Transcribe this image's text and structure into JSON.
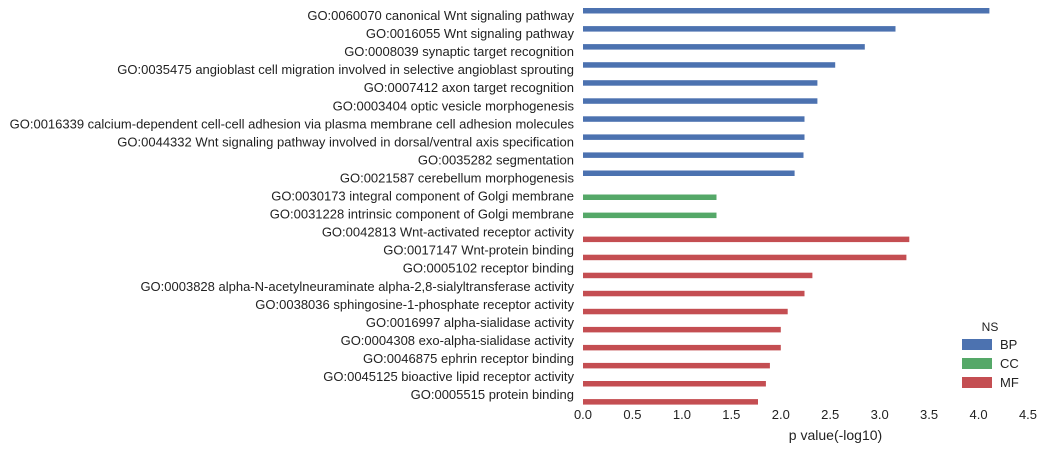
{
  "chart_data": {
    "type": "bar",
    "orientation": "horizontal",
    "xlabel": "p value(-log10)",
    "ylabel": "",
    "xlim": [
      0,
      4.5
    ],
    "xticks": [
      "0.0",
      "0.5",
      "1.0",
      "1.5",
      "2.0",
      "2.5",
      "3.0",
      "3.5",
      "4.0",
      "4.5"
    ],
    "grid": false,
    "legend": {
      "title": "NS",
      "placement": "bottom-right",
      "entries": [
        {
          "name": "BP",
          "color": "#4c72b0"
        },
        {
          "name": "CC",
          "color": "#55a868"
        },
        {
          "name": "MF",
          "color": "#c44e52"
        }
      ]
    },
    "categories": [
      "GO:0060070 canonical Wnt signaling pathway",
      "GO:0016055 Wnt signaling pathway",
      "GO:0008039 synaptic target recognition",
      "GO:0035475 angioblast cell migration involved in selective angioblast sprouting",
      "GO:0007412 axon target recognition",
      "GO:0003404 optic vesicle morphogenesis",
      "GO:0016339 calcium-dependent cell-cell adhesion via plasma membrane cell adhesion molecules",
      "GO:0044332 Wnt signaling pathway involved in dorsal/ventral axis specification",
      "GO:0035282 segmentation",
      "GO:0021587 cerebellum morphogenesis",
      "GO:0030173 integral component of Golgi membrane",
      "GO:0031228 intrinsic component of Golgi membrane",
      "GO:0042813 Wnt-activated receptor activity",
      "GO:0017147 Wnt-protein binding",
      "GO:0005102 receptor binding",
      "GO:0003828 alpha-N-acetylneuraminate alpha-2,8-sialyltransferase activity",
      "GO:0038036 sphingosine-1-phosphate receptor activity",
      "GO:0016997 alpha-sialidase activity",
      "GO:0004308 exo-alpha-sialidase activity",
      "GO:0046875 ephrin receptor binding",
      "GO:0045125 bioactive lipid receptor activity",
      "GO:0005515 protein binding"
    ],
    "values": [
      4.11,
      3.16,
      2.85,
      2.55,
      2.37,
      2.37,
      2.24,
      2.24,
      2.23,
      2.14,
      1.35,
      1.35,
      3.3,
      3.27,
      2.32,
      2.24,
      2.07,
      2.0,
      2.0,
      1.89,
      1.85,
      1.77
    ],
    "groups": [
      "BP",
      "BP",
      "BP",
      "BP",
      "BP",
      "BP",
      "BP",
      "BP",
      "BP",
      "BP",
      "CC",
      "CC",
      "MF",
      "MF",
      "MF",
      "MF",
      "MF",
      "MF",
      "MF",
      "MF",
      "MF",
      "MF"
    ]
  }
}
